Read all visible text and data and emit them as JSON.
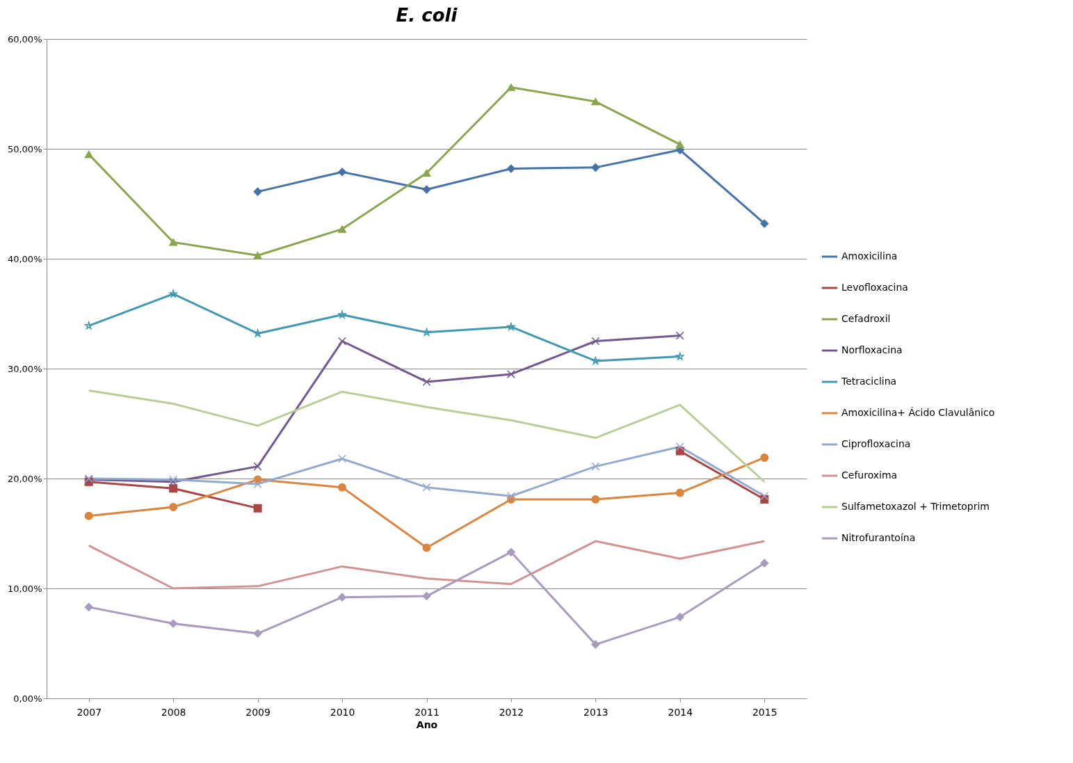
{
  "chart_data": {
    "type": "line",
    "title": "E. coli",
    "xlabel": "Ano",
    "categories": [
      "2007",
      "2008",
      "2009",
      "2010",
      "2011",
      "2012",
      "2013",
      "2014",
      "2015"
    ],
    "ylim": [
      0,
      60
    ],
    "yticks": [
      {
        "value": 0,
        "label": "0,00%"
      },
      {
        "value": 10,
        "label": "10,00%"
      },
      {
        "value": 20,
        "label": "20,00%"
      },
      {
        "value": 30,
        "label": "30,00%"
      },
      {
        "value": 40,
        "label": "40,00%"
      },
      {
        "value": 50,
        "label": "50,00%"
      },
      {
        "value": 60,
        "label": "60,00%"
      }
    ],
    "grid": "y",
    "legend": "right",
    "series": [
      {
        "name": "Amoxicilina",
        "color": "#4572a7",
        "marker": "diamond",
        "values": [
          null,
          null,
          46.1,
          47.9,
          46.3,
          48.2,
          48.3,
          49.9,
          43.2
        ]
      },
      {
        "name": "Levofloxacina",
        "color": "#aa4643",
        "marker": "square",
        "values": [
          19.7,
          19.1,
          17.3,
          null,
          null,
          null,
          null,
          22.5,
          18.1
        ]
      },
      {
        "name": "Cefadroxil",
        "color": "#89a54e",
        "marker": "triangle",
        "values": [
          49.5,
          41.5,
          40.3,
          42.7,
          47.8,
          55.6,
          54.3,
          50.4,
          null
        ]
      },
      {
        "name": "Norfloxacina",
        "color": "#71588f",
        "marker": "cross",
        "values": [
          19.9,
          19.7,
          21.1,
          32.5,
          28.8,
          29.5,
          32.5,
          33.0,
          null
        ]
      },
      {
        "name": "Tetraciclina",
        "color": "#4198af",
        "marker": "star",
        "values": [
          33.9,
          36.8,
          33.2,
          34.9,
          33.3,
          33.8,
          30.7,
          31.1,
          null
        ]
      },
      {
        "name": "Amoxicilina+ Ácido Clavulânico",
        "color": "#db843d",
        "marker": "circle",
        "values": [
          16.6,
          17.4,
          19.9,
          19.2,
          13.7,
          18.1,
          18.1,
          18.7,
          21.9
        ]
      },
      {
        "name": "Ciprofloxacina",
        "color": "#93a9cf",
        "marker": "cross",
        "values": [
          20.0,
          19.9,
          19.5,
          21.8,
          19.2,
          18.4,
          21.1,
          22.9,
          18.4
        ]
      },
      {
        "name": "Cefuroxima",
        "color": "#d19392",
        "marker": "none",
        "values": [
          13.9,
          10.0,
          10.2,
          12.0,
          10.9,
          10.4,
          14.3,
          12.7,
          14.3
        ]
      },
      {
        "name": "Sulfametoxazol + Trimetoprim",
        "color": "#b9cd96",
        "marker": "none",
        "values": [
          28.0,
          26.8,
          24.8,
          27.9,
          26.5,
          25.3,
          23.7,
          26.7,
          19.7
        ]
      },
      {
        "name": "Nitrofurantoína",
        "color": "#a99bbd",
        "marker": "diamond",
        "values": [
          8.3,
          6.8,
          5.9,
          9.2,
          9.3,
          13.3,
          4.9,
          7.4,
          12.3
        ]
      }
    ]
  }
}
